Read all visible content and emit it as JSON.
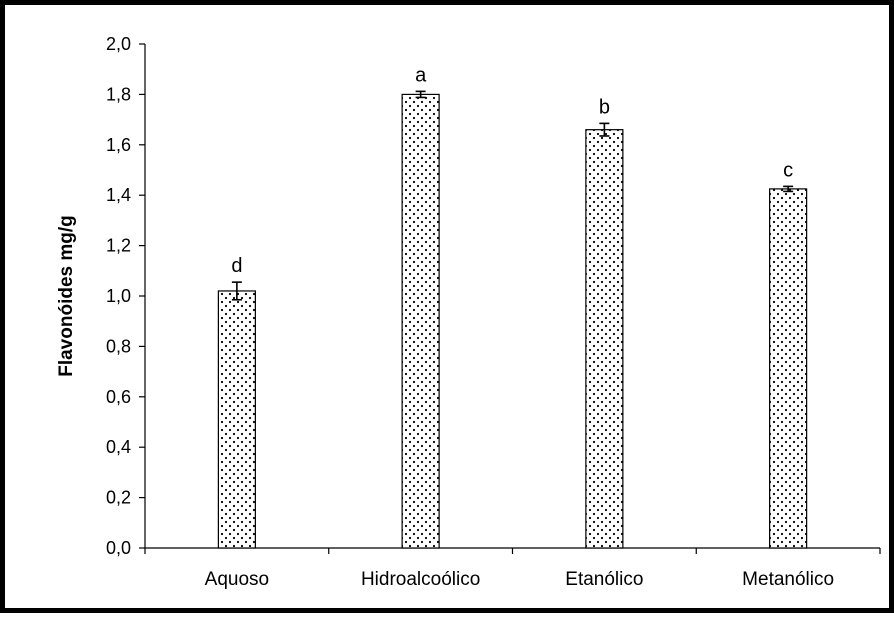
{
  "chart_data": {
    "type": "bar",
    "title": "",
    "xlabel": "",
    "ylabel": "Flavonóides mg/g",
    "categories": [
      "Aquoso",
      "Hidroalcoólico",
      "Etanólico",
      "Metanólico"
    ],
    "values": [
      1.02,
      1.8,
      1.66,
      1.425
    ],
    "errors": [
      0.035,
      0.012,
      0.025,
      0.01
    ],
    "significance_labels": [
      "d",
      "a",
      "b",
      "c"
    ],
    "ylim": [
      0,
      2.0
    ],
    "ytick_step": 0.2,
    "ytick_labels": [
      "0,0",
      "0,2",
      "0,4",
      "0,6",
      "0,8",
      "1,0",
      "1,2",
      "1,4",
      "1,6",
      "1,8",
      "2,0"
    ],
    "grid": false,
    "legend": "none",
    "bar_fill": "dotted-pattern",
    "colors": {
      "bar_outline": "#000000",
      "dots": "#000000",
      "background": "#ffffff",
      "frame": "#000000"
    }
  }
}
